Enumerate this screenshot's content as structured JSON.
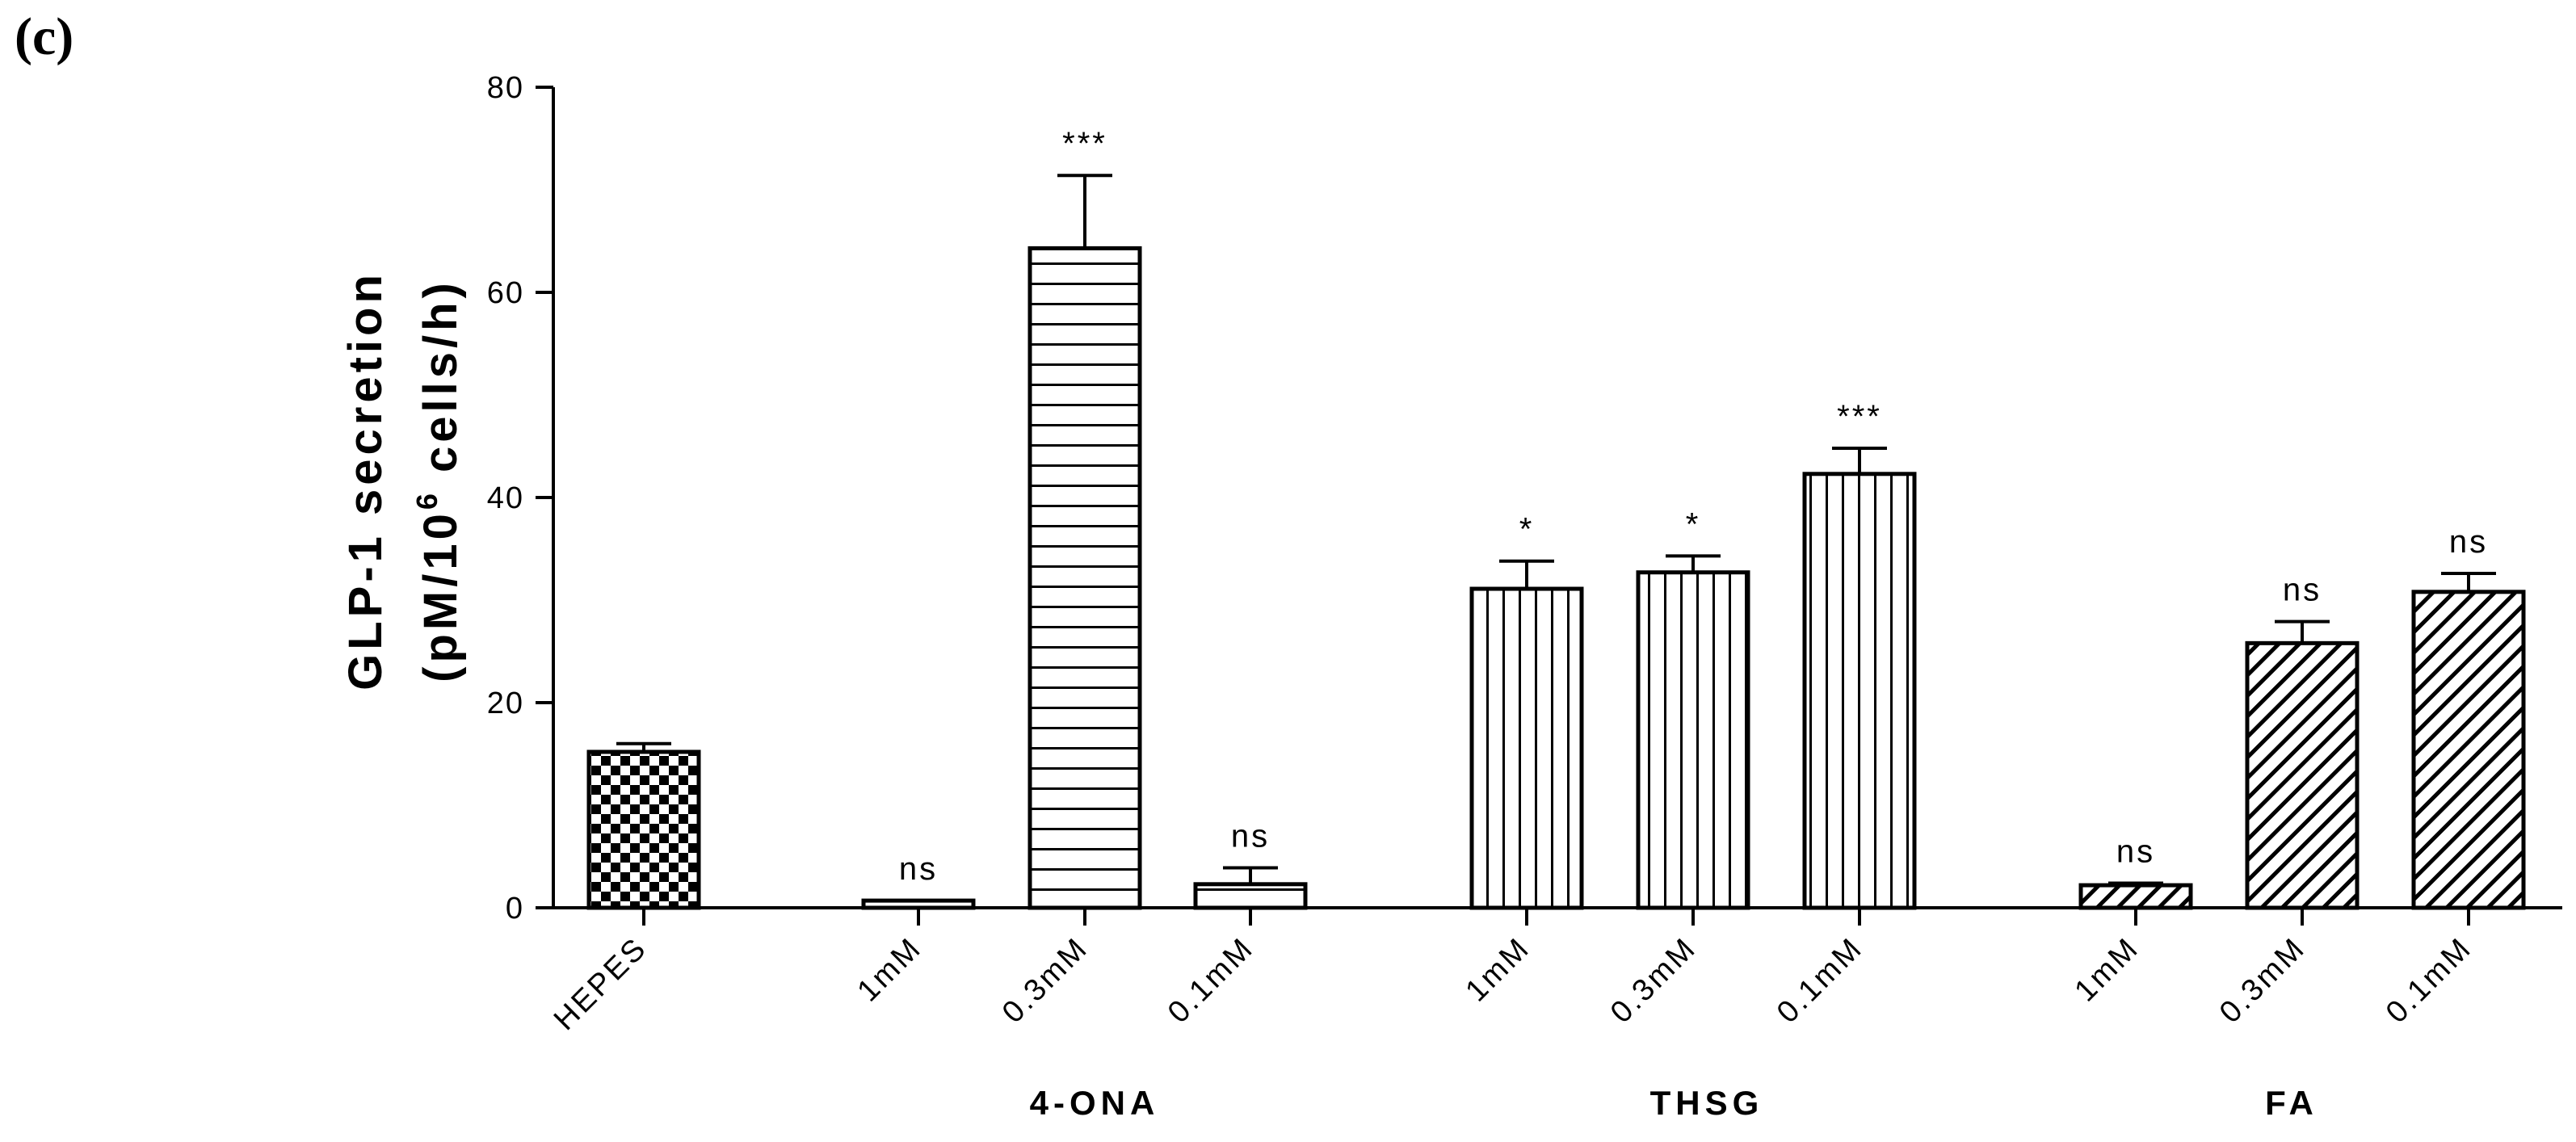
{
  "panel_label": "(c)",
  "chart_data": {
    "type": "bar",
    "title": "",
    "ylabel_line1": "GLP-1 secretion",
    "ylabel_line2_prefix": "(pM/10",
    "ylabel_line2_sup": "6",
    "ylabel_line2_suffix": " cells/h)",
    "ylim": [
      0,
      80
    ],
    "yticks": [
      0,
      20,
      40,
      60,
      80
    ],
    "grid": false,
    "groups": [
      {
        "label": "",
        "bars": [
          {
            "category": "HEPES",
            "value": 15.2,
            "error": 0.8,
            "sig": "",
            "pattern": "checker"
          }
        ]
      },
      {
        "label": "4-ONA",
        "bars": [
          {
            "category": "1mM",
            "value": 0.7,
            "error": 0.0,
            "sig": "ns",
            "pattern": "hlines"
          },
          {
            "category": "0.3mM",
            "value": 64.3,
            "error": 7.1,
            "sig": "***",
            "pattern": "hlines"
          },
          {
            "category": "0.1mM",
            "value": 2.3,
            "error": 1.6,
            "sig": "ns",
            "pattern": "hlines"
          }
        ]
      },
      {
        "label": "THSG",
        "bars": [
          {
            "category": "1mM",
            "value": 31.1,
            "error": 2.7,
            "sig": "*",
            "pattern": "vlines"
          },
          {
            "category": "0.3mM",
            "value": 32.7,
            "error": 1.6,
            "sig": "*",
            "pattern": "vlines"
          },
          {
            "category": "0.1mM",
            "value": 42.3,
            "error": 2.5,
            "sig": "***",
            "pattern": "vlines"
          }
        ]
      },
      {
        "label": "FA",
        "bars": [
          {
            "category": "1mM",
            "value": 2.2,
            "error": 0.2,
            "sig": "ns",
            "pattern": "diag"
          },
          {
            "category": "0.3mM",
            "value": 25.8,
            "error": 2.1,
            "sig": "ns",
            "pattern": "diag"
          },
          {
            "category": "0.1mM",
            "value": 30.8,
            "error": 1.8,
            "sig": "ns",
            "pattern": "diag"
          }
        ]
      }
    ]
  }
}
